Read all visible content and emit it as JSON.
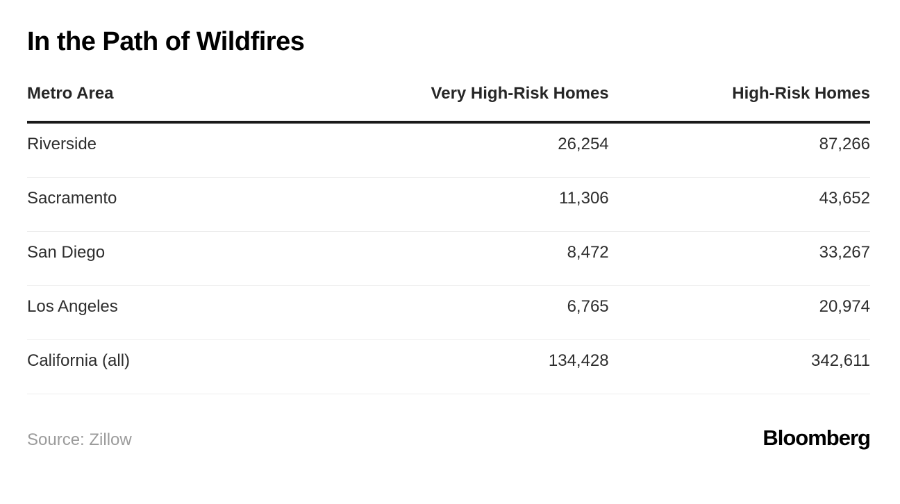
{
  "title": "In the Path of Wildfires",
  "table": {
    "columns": [
      "Metro Area",
      "Very High-Risk Homes",
      "High-Risk Homes"
    ],
    "rows": [
      {
        "metro": "Riverside",
        "very_high": "26,254",
        "high": "87,266"
      },
      {
        "metro": "Sacramento",
        "very_high": "11,306",
        "high": "43,652"
      },
      {
        "metro": "San Diego",
        "very_high": "8,472",
        "high": "33,267"
      },
      {
        "metro": "Los Angeles",
        "very_high": "6,765",
        "high": "20,974"
      },
      {
        "metro": "California (all)",
        "very_high": "134,428",
        "high": "342,611"
      }
    ]
  },
  "footer": {
    "source": "Source: Zillow",
    "brand": "Bloomberg"
  },
  "colors": {
    "title_text": "#000000",
    "header_text": "#262626",
    "body_text": "#2e2e2e",
    "header_rule": "#1a1a1a",
    "row_separator": "#ececec",
    "source_text": "#9b9b9b",
    "background": "#ffffff"
  },
  "chart_data": {
    "type": "table",
    "title": "In the Path of Wildfires",
    "columns": [
      "Metro Area",
      "Very High-Risk Homes",
      "High-Risk Homes"
    ],
    "rows": [
      [
        "Riverside",
        26254,
        87266
      ],
      [
        "Sacramento",
        11306,
        43652
      ],
      [
        "San Diego",
        8472,
        33267
      ],
      [
        "Los Angeles",
        6765,
        20974
      ],
      [
        "California (all)",
        134428,
        342611
      ]
    ],
    "source": "Zillow",
    "layout_hints": {
      "numeric_columns_right_aligned": true,
      "thick_rule_under_header": true,
      "thin_separator_between_rows": true
    }
  }
}
